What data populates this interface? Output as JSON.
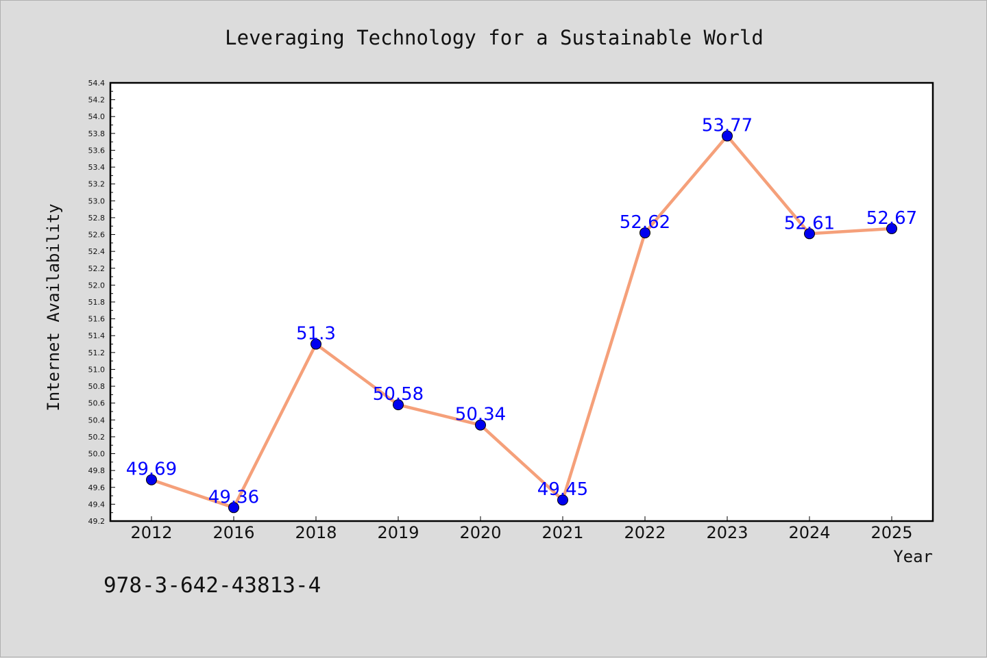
{
  "chart_data": {
    "type": "line",
    "title": "Leveraging Technology for a Sustainable World",
    "xlabel": "Year",
    "ylabel": "Internet Availability",
    "categories": [
      "2012",
      "2016",
      "2018",
      "2019",
      "2020",
      "2021",
      "2022",
      "2023",
      "2024",
      "2025"
    ],
    "series": [
      {
        "values": [
          49.69,
          49.36,
          51.3,
          50.58,
          50.34,
          49.45,
          52.62,
          53.77,
          52.61,
          52.67
        ],
        "line_color": "#f5a07a",
        "marker_color": "#0000ee"
      }
    ],
    "data_labels": [
      "49.69",
      "49.36",
      "51.3",
      "50.58",
      "50.34",
      "49.45",
      "52.62",
      "53.77",
      "52.61",
      "52.67"
    ],
    "ylim": [
      49.2,
      54.4
    ],
    "yticks": [
      "49.2",
      "49.4",
      "49.6",
      "49.8",
      "50.0",
      "50.2",
      "50.4",
      "50.6",
      "50.8",
      "51.0",
      "51.2",
      "51.4",
      "51.6",
      "51.8",
      "52.0",
      "52.2",
      "52.4",
      "52.6",
      "52.8",
      "53.0",
      "53.2",
      "53.4",
      "53.6",
      "53.8",
      "54.0",
      "54.2",
      "54.4"
    ],
    "grid": false,
    "label_color": "#0000ff"
  },
  "footer": {
    "isbn": "978-3-642-43813-4"
  }
}
